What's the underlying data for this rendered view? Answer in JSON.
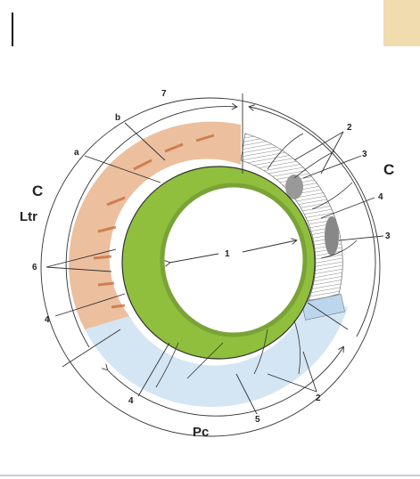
{
  "labels": [
    "7",
    "b",
    "a",
    "2",
    "3",
    "C",
    "4",
    "3",
    "C",
    "Ltr",
    "1",
    "6",
    "4",
    "4",
    "5",
    "2",
    "Pc"
  ]
}
